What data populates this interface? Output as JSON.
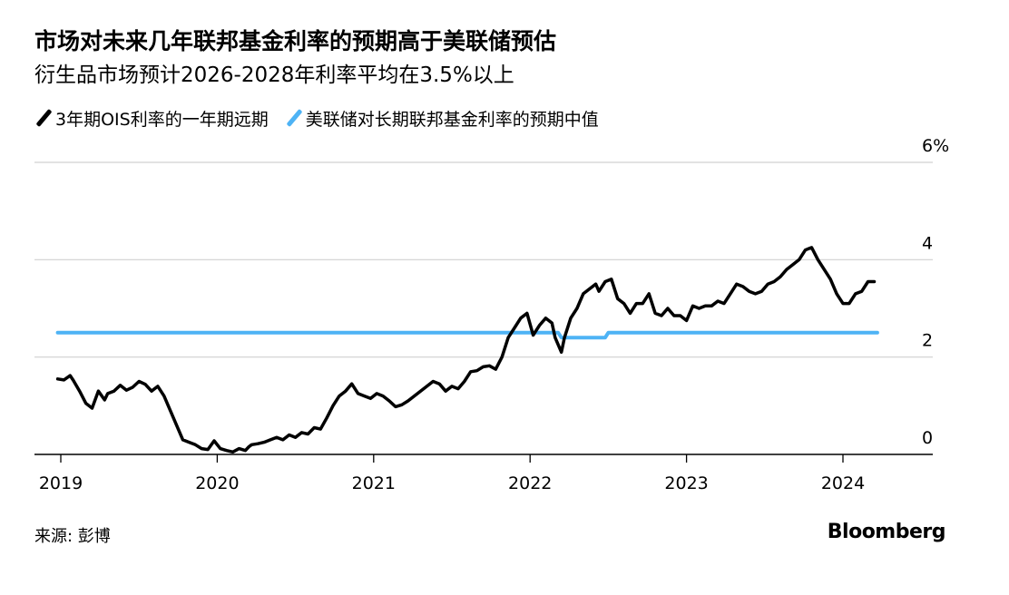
{
  "title": "市场对未来几年联邦基金利率的预期高于美联储预估",
  "subtitle": "衍生品市场预计2026-2028年利率平均在3.5%以上",
  "source": "来源: 彭博",
  "logo": "Bloomberg",
  "chart_data": {
    "type": "line",
    "title": "市场对未来几年联邦基金利率的预期高于美联储预估",
    "subtitle": "衍生品市场预计2026-2028年利率平均在3.5%以上",
    "ylim": [
      0,
      6
    ],
    "xlim": [
      2019.0,
      2024.55
    ],
    "y_ticks": [
      0,
      2,
      4,
      6
    ],
    "y_tick_labels": [
      "0",
      "2",
      "4",
      "6%"
    ],
    "x_ticks": [
      2019,
      2020,
      2021,
      2022,
      2023,
      2024
    ],
    "x_tick_labels": [
      "2019",
      "2020",
      "2021",
      "2022",
      "2023",
      "2024"
    ],
    "grid": true,
    "y_axis_side": "right",
    "legend_position": "top-left",
    "series": [
      {
        "name": "3年期OIS利率的一年期远期",
        "color": "#000000",
        "x": [
          2018.98,
          2019.02,
          2019.06,
          2019.08,
          2019.12,
          2019.16,
          2019.2,
          2019.24,
          2019.28,
          2019.3,
          2019.34,
          2019.38,
          2019.42,
          2019.46,
          2019.5,
          2019.54,
          2019.58,
          2019.62,
          2019.66,
          2019.7,
          2019.74,
          2019.78,
          2019.82,
          2019.86,
          2019.9,
          2019.94,
          2019.98,
          2020.02,
          2020.06,
          2020.1,
          2020.14,
          2020.18,
          2020.2,
          2020.22,
          2020.26,
          2020.3,
          2020.34,
          2020.38,
          2020.42,
          2020.46,
          2020.5,
          2020.54,
          2020.58,
          2020.62,
          2020.66,
          2020.7,
          2020.74,
          2020.78,
          2020.82,
          2020.86,
          2020.9,
          2020.94,
          2020.98,
          2021.02,
          2021.06,
          2021.1,
          2021.14,
          2021.18,
          2021.22,
          2021.26,
          2021.3,
          2021.34,
          2021.38,
          2021.42,
          2021.46,
          2021.5,
          2021.54,
          2021.58,
          2021.62,
          2021.66,
          2021.7,
          2021.74,
          2021.78,
          2021.82,
          2021.86,
          2021.9,
          2021.94,
          2021.98,
          2022.02,
          2022.06,
          2022.1,
          2022.14,
          2022.16,
          2022.2,
          2022.22,
          2022.26,
          2022.3,
          2022.34,
          2022.38,
          2022.42,
          2022.44,
          2022.48,
          2022.52,
          2022.56,
          2022.6,
          2022.64,
          2022.68,
          2022.72,
          2022.76,
          2022.8,
          2022.84,
          2022.88,
          2022.92,
          2022.96,
          2023.0,
          2023.04,
          2023.08,
          2023.12,
          2023.16,
          2023.2,
          2023.24,
          2023.28,
          2023.32,
          2023.36,
          2023.4,
          2023.44,
          2023.48,
          2023.52,
          2023.56,
          2023.6,
          2023.64,
          2023.68,
          2023.72,
          2023.76,
          2023.8,
          2023.84,
          2023.88,
          2023.92,
          2023.96,
          2024.0,
          2024.04,
          2024.08,
          2024.12,
          2024.16,
          2024.2
        ],
        "y": [
          1.55,
          1.53,
          1.62,
          1.52,
          1.3,
          1.05,
          0.95,
          1.3,
          1.12,
          1.25,
          1.3,
          1.42,
          1.32,
          1.38,
          1.5,
          1.44,
          1.3,
          1.4,
          1.2,
          0.9,
          0.6,
          0.3,
          0.25,
          0.2,
          0.12,
          0.1,
          0.28,
          0.12,
          0.08,
          0.05,
          0.12,
          0.08,
          0.15,
          0.2,
          0.22,
          0.25,
          0.3,
          0.35,
          0.3,
          0.4,
          0.35,
          0.45,
          0.42,
          0.55,
          0.52,
          0.75,
          1.0,
          1.2,
          1.3,
          1.45,
          1.25,
          1.2,
          1.15,
          1.25,
          1.2,
          1.1,
          0.98,
          1.02,
          1.1,
          1.2,
          1.3,
          1.4,
          1.5,
          1.45,
          1.3,
          1.4,
          1.35,
          1.5,
          1.7,
          1.72,
          1.8,
          1.82,
          1.75,
          2.0,
          2.4,
          2.6,
          2.8,
          2.9,
          2.45,
          2.65,
          2.8,
          2.7,
          2.4,
          2.1,
          2.4,
          2.8,
          3.0,
          3.3,
          3.4,
          3.5,
          3.35,
          3.55,
          3.6,
          3.2,
          3.1,
          2.9,
          3.1,
          3.1,
          3.3,
          2.9,
          2.85,
          3.0,
          2.85,
          2.85,
          2.75,
          3.05,
          3.0,
          3.05,
          3.05,
          3.15,
          3.1,
          3.3,
          3.5,
          3.45,
          3.35,
          3.3,
          3.35,
          3.5,
          3.55,
          3.65,
          3.8,
          3.9,
          4.0,
          4.2,
          4.25,
          4.0,
          3.8,
          3.6,
          3.3,
          3.1,
          3.1,
          3.3,
          3.35,
          3.55,
          3.55
        ]
      },
      {
        "name": "美联储对长期联邦基金利率的预期中值",
        "color": "#4eb3f5",
        "x": [
          2018.98,
          2022.18,
          2022.2,
          2022.48,
          2022.5,
          2024.22
        ],
        "y": [
          2.5,
          2.5,
          2.4,
          2.4,
          2.5,
          2.5
        ]
      }
    ]
  }
}
